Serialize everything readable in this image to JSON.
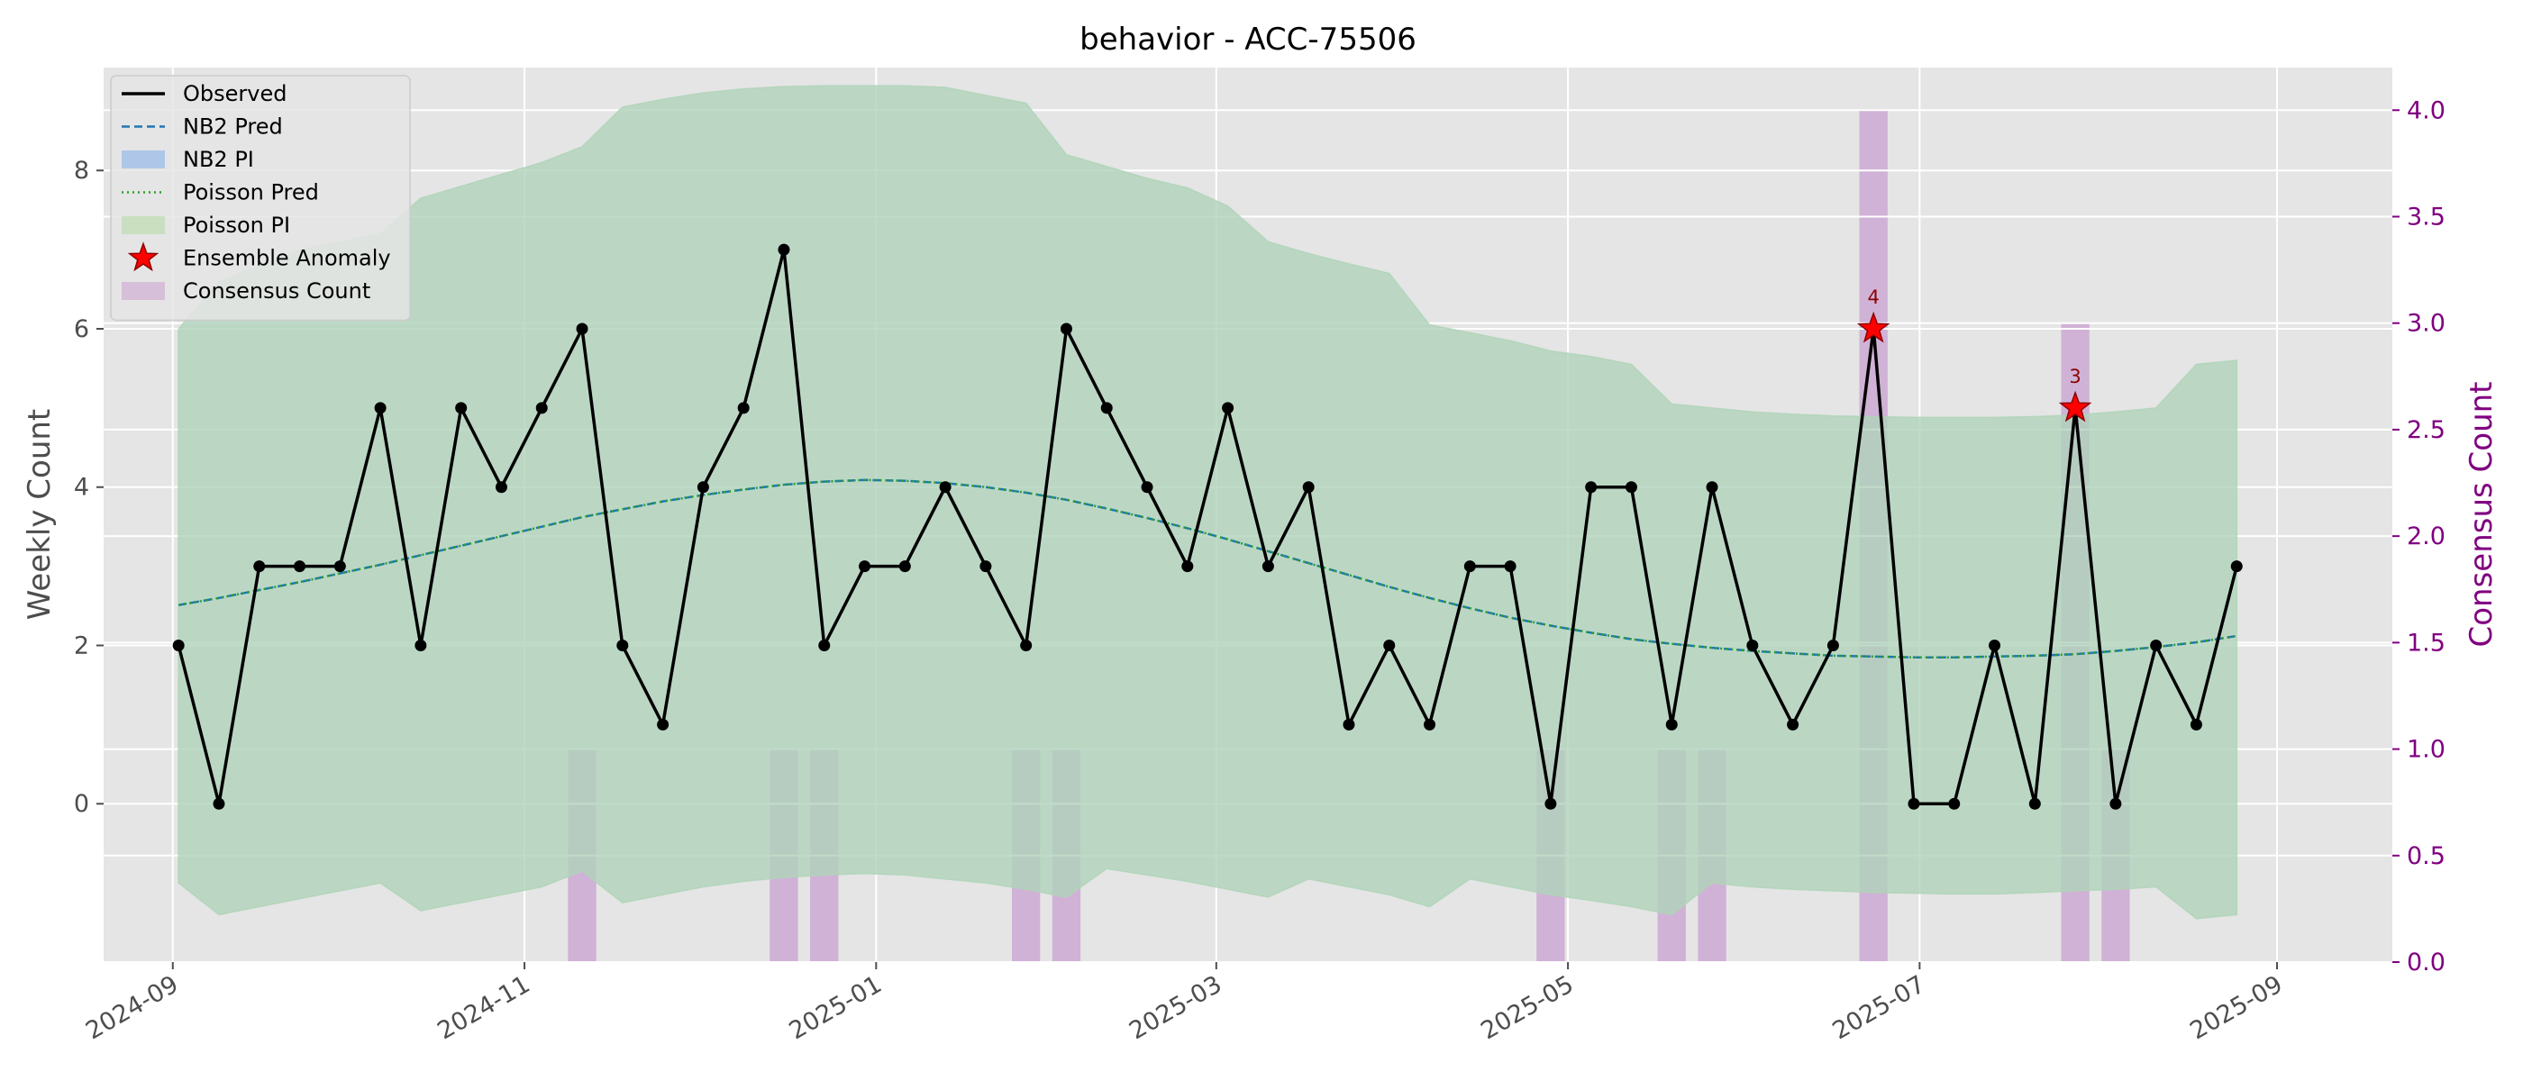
{
  "chart_data": {
    "type": "line",
    "title": "behavior - ACC-75506",
    "ylabel": "Weekly Count",
    "ylabel_right": "Consensus Count",
    "xlabel": "",
    "xlim": [
      "2024-08-20",
      "2025-09-21"
    ],
    "ylim": [
      -2.0,
      9.3
    ],
    "ylim_right": [
      0.0,
      4.2
    ],
    "grid": true,
    "legend_position": "upper-left",
    "x_ticks": [
      "2024-09",
      "2024-11",
      "2025-01",
      "2025-03",
      "2025-05",
      "2025-07",
      "2025-09"
    ],
    "y_ticks": [
      "0",
      "2",
      "4",
      "6",
      "8"
    ],
    "y_ticks_right": [
      "0.0",
      "0.5",
      "1.0",
      "1.5",
      "2.0",
      "2.5",
      "3.0",
      "3.5",
      "4.0"
    ],
    "colors": {
      "observed": "#000000",
      "nb2_pred": "#1f77b4",
      "poisson_pred": "#2ca02c",
      "nb2_pi": "#aec7e8",
      "poisson_pi": "#b0d8a8",
      "anomaly": "#ff0000",
      "consensus": "#c8a0d0",
      "right_axis": "#800080",
      "plot_bg": "#e5e5e5"
    },
    "legend": [
      {
        "label": "Observed",
        "kind": "line-solid",
        "color": "#000000"
      },
      {
        "label": "NB2 Pred",
        "kind": "line-dashed",
        "color": "#1f77b4"
      },
      {
        "label": "NB2 PI",
        "kind": "patch",
        "color": "#aec7e8"
      },
      {
        "label": "Poisson Pred",
        "kind": "line-dotted",
        "color": "#2ca02c"
      },
      {
        "label": "Poisson PI",
        "kind": "patch",
        "color": "#c9dfc0"
      },
      {
        "label": "Ensemble Anomaly",
        "kind": "star",
        "color": "#ff0000"
      },
      {
        "label": "Consensus Count",
        "kind": "patch",
        "color": "#d6bfd8"
      }
    ],
    "x": [
      "2024-09-02",
      "2024-09-09",
      "2024-09-16",
      "2024-09-23",
      "2024-09-30",
      "2024-10-07",
      "2024-10-14",
      "2024-10-21",
      "2024-10-28",
      "2024-11-04",
      "2024-11-11",
      "2024-11-18",
      "2024-11-25",
      "2024-12-02",
      "2024-12-09",
      "2024-12-16",
      "2024-12-23",
      "2024-12-30",
      "2025-01-06",
      "2025-01-13",
      "2025-01-20",
      "2025-01-27",
      "2025-02-03",
      "2025-02-10",
      "2025-02-17",
      "2025-02-24",
      "2025-03-03",
      "2025-03-10",
      "2025-03-17",
      "2025-03-24",
      "2025-03-31",
      "2025-04-07",
      "2025-04-14",
      "2025-04-21",
      "2025-04-28",
      "2025-05-05",
      "2025-05-12",
      "2025-05-19",
      "2025-05-26",
      "2025-06-02",
      "2025-06-09",
      "2025-06-16",
      "2025-06-23",
      "2025-06-30",
      "2025-07-07",
      "2025-07-14",
      "2025-07-21",
      "2025-07-28",
      "2025-08-04",
      "2025-08-11",
      "2025-08-18",
      "2025-08-25"
    ],
    "series": [
      {
        "name": "Observed",
        "values": [
          2,
          0,
          3,
          3,
          3,
          5,
          2,
          5,
          4,
          5,
          6,
          2,
          1,
          4,
          5,
          7,
          2,
          3,
          3,
          4,
          3,
          2,
          6,
          5,
          4,
          3,
          5,
          3,
          4,
          1,
          2,
          1,
          3,
          3,
          0,
          4,
          4,
          1,
          4,
          2,
          1,
          2,
          6,
          0,
          0,
          2,
          0,
          5,
          0,
          2,
          1,
          3
        ]
      },
      {
        "name": "NB2 Pred",
        "values": [
          2.51,
          2.6,
          2.7,
          2.8,
          2.91,
          3.02,
          3.14,
          3.26,
          3.38,
          3.5,
          3.62,
          3.72,
          3.82,
          3.9,
          3.97,
          4.03,
          4.07,
          4.09,
          4.08,
          4.05,
          4.0,
          3.93,
          3.84,
          3.73,
          3.61,
          3.48,
          3.34,
          3.19,
          3.04,
          2.89,
          2.74,
          2.6,
          2.47,
          2.35,
          2.25,
          2.16,
          2.08,
          2.02,
          1.97,
          1.93,
          1.9,
          1.87,
          1.86,
          1.85,
          1.85,
          1.86,
          1.87,
          1.89,
          1.93,
          1.98,
          2.04,
          2.12
        ]
      },
      {
        "name": "Poisson Pred",
        "values": [
          2.51,
          2.6,
          2.7,
          2.8,
          2.91,
          3.02,
          3.14,
          3.26,
          3.38,
          3.5,
          3.62,
          3.72,
          3.82,
          3.9,
          3.97,
          4.03,
          4.07,
          4.09,
          4.08,
          4.05,
          4.0,
          3.93,
          3.84,
          3.73,
          3.61,
          3.48,
          3.34,
          3.19,
          3.04,
          2.89,
          2.74,
          2.6,
          2.47,
          2.35,
          2.25,
          2.16,
          2.08,
          2.02,
          1.97,
          1.93,
          1.9,
          1.87,
          1.86,
          1.85,
          1.85,
          1.86,
          1.87,
          1.89,
          1.93,
          1.98,
          2.04,
          2.12
        ]
      },
      {
        "name": "NB2 PI",
        "lower": [
          -1.0,
          -1.4,
          -1.3,
          -1.2,
          -1.1,
          -1.0,
          -1.35,
          -1.25,
          -1.15,
          -1.05,
          -0.85,
          -1.25,
          -1.15,
          -1.05,
          -0.98,
          -0.93,
          -0.9,
          -0.88,
          -0.9,
          -0.95,
          -1.0,
          -1.08,
          -1.18,
          -0.82,
          -0.9,
          -0.98,
          -1.08,
          -1.18,
          -0.95,
          -1.05,
          -1.15,
          -1.3,
          -0.95,
          -1.05,
          -1.15,
          -1.22,
          -1.3,
          -1.4,
          -1.0,
          -1.05,
          -1.08,
          -1.1,
          -1.12,
          -1.13,
          -1.14,
          -1.14,
          -1.12,
          -1.1,
          -1.08,
          -1.05,
          -1.45,
          -1.4
        ],
        "upper": [
          6.0,
          6.6,
          6.8,
          7.0,
          7.1,
          7.2,
          7.65,
          7.8,
          7.95,
          8.1,
          8.3,
          8.8,
          8.9,
          8.98,
          9.03,
          9.06,
          9.07,
          9.07,
          9.07,
          9.05,
          8.95,
          8.85,
          8.2,
          8.05,
          7.9,
          7.78,
          7.55,
          7.1,
          6.95,
          6.82,
          6.7,
          6.05,
          5.95,
          5.85,
          5.72,
          5.65,
          5.55,
          5.05,
          5.0,
          4.95,
          4.92,
          4.9,
          4.89,
          4.88,
          4.88,
          4.88,
          4.89,
          4.91,
          4.95,
          5.0,
          5.55,
          5.6
        ]
      },
      {
        "name": "Poisson PI",
        "lower": [
          -1.0,
          -1.4,
          -1.3,
          -1.2,
          -1.1,
          -1.0,
          -1.35,
          -1.25,
          -1.15,
          -1.05,
          -0.85,
          -1.25,
          -1.15,
          -1.05,
          -0.98,
          -0.93,
          -0.9,
          -0.88,
          -0.9,
          -0.95,
          -1.0,
          -1.08,
          -1.18,
          -0.82,
          -0.9,
          -0.98,
          -1.08,
          -1.18,
          -0.95,
          -1.05,
          -1.15,
          -1.3,
          -0.95,
          -1.05,
          -1.15,
          -1.22,
          -1.3,
          -1.4,
          -1.0,
          -1.05,
          -1.08,
          -1.1,
          -1.12,
          -1.13,
          -1.14,
          -1.14,
          -1.12,
          -1.1,
          -1.08,
          -1.05,
          -1.45,
          -1.4
        ],
        "upper": [
          6.0,
          6.6,
          6.8,
          7.0,
          7.1,
          7.2,
          7.65,
          7.8,
          7.95,
          8.1,
          8.3,
          8.8,
          8.9,
          8.98,
          9.03,
          9.06,
          9.07,
          9.07,
          9.07,
          9.05,
          8.95,
          8.85,
          8.2,
          8.05,
          7.9,
          7.78,
          7.55,
          7.1,
          6.95,
          6.82,
          6.7,
          6.05,
          5.95,
          5.85,
          5.72,
          5.65,
          5.55,
          5.05,
          5.0,
          4.95,
          4.92,
          4.9,
          4.89,
          4.88,
          4.88,
          4.88,
          4.89,
          4.91,
          4.95,
          5.0,
          5.55,
          5.6
        ]
      }
    ],
    "anomalies": [
      {
        "x": "2025-06-23",
        "y": 6,
        "label": "4"
      },
      {
        "x": "2025-07-28",
        "y": 5,
        "label": "3"
      }
    ],
    "consensus_bars": [
      {
        "x": "2024-11-11",
        "value": 1
      },
      {
        "x": "2024-12-16",
        "value": 1
      },
      {
        "x": "2024-12-23",
        "value": 1
      },
      {
        "x": "2025-01-27",
        "value": 1
      },
      {
        "x": "2025-02-03",
        "value": 1
      },
      {
        "x": "2025-04-28",
        "value": 1
      },
      {
        "x": "2025-05-19",
        "value": 1
      },
      {
        "x": "2025-05-26",
        "value": 1
      },
      {
        "x": "2025-06-23",
        "value": 4
      },
      {
        "x": "2025-07-28",
        "value": 3
      },
      {
        "x": "2025-08-04",
        "value": 1
      }
    ]
  }
}
